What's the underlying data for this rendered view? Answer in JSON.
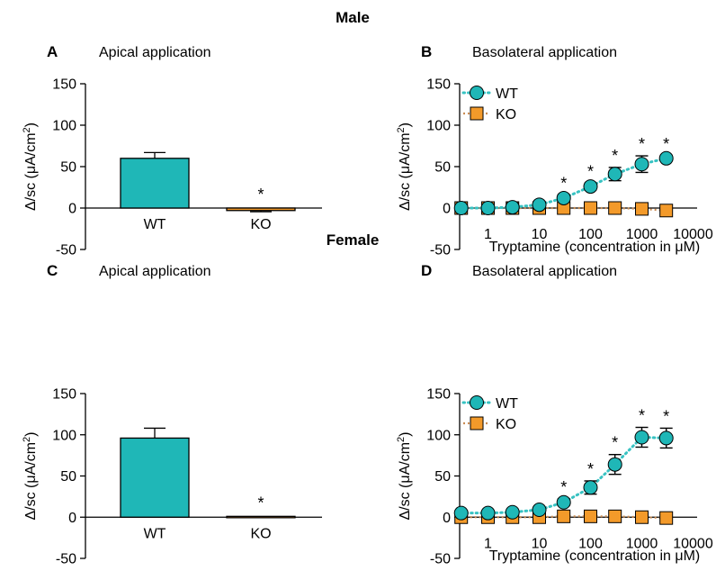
{
  "figure": {
    "sections": [
      {
        "title": "Male"
      },
      {
        "title": "Female"
      }
    ]
  },
  "colors": {
    "wt": "#1fb7b7",
    "ko": "#f39a2a",
    "wt_dots": "#38c2c2",
    "ko_dots": "#c98d55"
  },
  "chart_data": [
    {
      "panel": "A",
      "title": "Apical application",
      "type": "bar",
      "categories": [
        "WT",
        "KO"
      ],
      "values": [
        60,
        -3
      ],
      "errors": [
        7,
        1.5
      ],
      "significant": [
        false,
        true
      ],
      "ylabel": "ΔIsc (μA/cm²)",
      "ylabel_parts": {
        "pre": "Δ/sc (μA/cm",
        "sup": "2",
        "post": ")"
      },
      "ylim": [
        -50,
        150
      ],
      "yticks": [
        -50,
        0,
        50,
        100,
        150
      ],
      "significance_marker": "*"
    },
    {
      "panel": "B",
      "title": "Basolateral application",
      "type": "line",
      "x_scale": "log",
      "xlabel": "Tryptamine (concentration in μM)",
      "ylabel": "ΔIsc (μA/cm²)",
      "ylabel_parts": {
        "pre": "Δ/sc (μA/cm",
        "sup": "2",
        "post": ")"
      },
      "xticks": [
        1,
        10,
        100,
        1000,
        10000
      ],
      "ylim": [
        -50,
        150
      ],
      "yticks": [
        -50,
        0,
        50,
        100,
        150
      ],
      "legend_position": "top-left",
      "significance_marker": "*",
      "series": [
        {
          "name": "WT",
          "x": [
            0.3,
            1,
            3,
            10,
            30,
            100,
            300,
            1000,
            3000
          ],
          "y": [
            0,
            0,
            1,
            4,
            12,
            26,
            41,
            53,
            60
          ],
          "err": [
            0,
            0,
            1,
            2,
            4,
            4,
            8,
            10,
            3
          ],
          "significant": [
            false,
            false,
            false,
            false,
            true,
            true,
            true,
            true,
            true
          ]
        },
        {
          "name": "KO",
          "x": [
            0.3,
            1,
            3,
            10,
            30,
            100,
            300,
            1000,
            3000
          ],
          "y": [
            0,
            0,
            0,
            0,
            0,
            0,
            0,
            -1,
            -3
          ],
          "err": [
            0,
            0,
            0,
            0,
            0,
            0,
            0,
            0,
            0
          ]
        }
      ]
    },
    {
      "panel": "C",
      "title": "Apical application",
      "type": "bar",
      "categories": [
        "WT",
        "KO"
      ],
      "values": [
        96,
        1
      ],
      "errors": [
        12,
        0
      ],
      "significant": [
        false,
        true
      ],
      "ylabel": "ΔIsc (μA/cm²)",
      "ylabel_parts": {
        "pre": "Δ/sc (μA/cm",
        "sup": "2",
        "post": ")"
      },
      "ylim": [
        -50,
        150
      ],
      "yticks": [
        -50,
        0,
        50,
        100,
        150
      ],
      "significance_marker": "*"
    },
    {
      "panel": "D",
      "title": "Basolateral application",
      "type": "line",
      "x_scale": "log",
      "xlabel": "Tryptamine (concentration in μM)",
      "ylabel": "ΔIsc (μA/cm²)",
      "ylabel_parts": {
        "pre": "Δ/sc (μA/cm",
        "sup": "2",
        "post": ")"
      },
      "xticks": [
        1,
        10,
        100,
        1000,
        10000
      ],
      "ylim": [
        -50,
        150
      ],
      "yticks": [
        -50,
        0,
        50,
        100,
        150
      ],
      "legend_position": "top-left",
      "significance_marker": "*",
      "series": [
        {
          "name": "WT",
          "x": [
            0.3,
            1,
            3,
            10,
            30,
            100,
            300,
            1000,
            3000
          ],
          "y": [
            5,
            5,
            6,
            9,
            18,
            36,
            64,
            97,
            96
          ],
          "err": [
            0,
            0,
            0,
            2,
            4,
            8,
            12,
            12,
            12
          ],
          "significant": [
            false,
            false,
            false,
            false,
            true,
            true,
            true,
            true,
            true
          ]
        },
        {
          "name": "KO",
          "x": [
            0.3,
            1,
            3,
            10,
            30,
            100,
            300,
            1000,
            3000
          ],
          "y": [
            0,
            0,
            0,
            0,
            1,
            1,
            1,
            0,
            -1
          ],
          "err": [
            0,
            0,
            0,
            0,
            0,
            0,
            0,
            0,
            0
          ]
        }
      ]
    }
  ]
}
